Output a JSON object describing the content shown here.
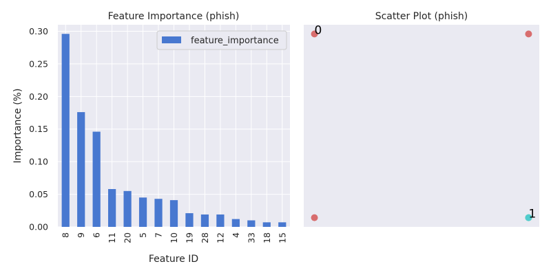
{
  "figure": {
    "background": "#ffffff",
    "axes_bg": "#eaeaf2",
    "grid_color": "#ffffff",
    "text_color": "#262626"
  },
  "chart_data": [
    {
      "type": "bar",
      "title": "Feature Importance (phish)",
      "xlabel": "Feature ID",
      "ylabel": "Importance (%)",
      "categories": [
        "8",
        "9",
        "6",
        "11",
        "20",
        "5",
        "7",
        "10",
        "19",
        "28",
        "12",
        "4",
        "33",
        "18",
        "15"
      ],
      "series": [
        {
          "name": "feature_importance",
          "color": "#4878d0",
          "values": [
            0.296,
            0.176,
            0.146,
            0.058,
            0.055,
            0.045,
            0.043,
            0.041,
            0.021,
            0.019,
            0.019,
            0.012,
            0.01,
            0.007,
            0.007
          ]
        }
      ],
      "ylim": [
        0,
        0.31
      ],
      "yticks": [
        0.0,
        0.05,
        0.1,
        0.15,
        0.2,
        0.25,
        0.3
      ],
      "ytick_labels": [
        "0.00",
        "0.05",
        "0.10",
        "0.15",
        "0.20",
        "0.25",
        "0.30"
      ],
      "grid": true,
      "legend": "upper-right",
      "xtick_rotation": "vertical"
    },
    {
      "type": "scatter",
      "title": "Scatter Plot (phish)",
      "xlim": [
        -0.05,
        1.05
      ],
      "ylim": [
        -0.05,
        1.05
      ],
      "show_ticks": false,
      "grid": false,
      "points": [
        {
          "x": 0,
          "y": 1,
          "color": "#d65f5f"
        },
        {
          "x": 1,
          "y": 1,
          "color": "#d65f5f"
        },
        {
          "x": 0,
          "y": 0,
          "color": "#d65f5f"
        },
        {
          "x": 1,
          "y": 0,
          "color": "#6acc64"
        },
        {
          "x": 1,
          "y": 0,
          "color": "#4ccbd8"
        }
      ],
      "annotations": [
        {
          "text": "0",
          "x": 0,
          "y": 1
        },
        {
          "text": "1",
          "x": 1,
          "y": 0
        }
      ]
    }
  ]
}
